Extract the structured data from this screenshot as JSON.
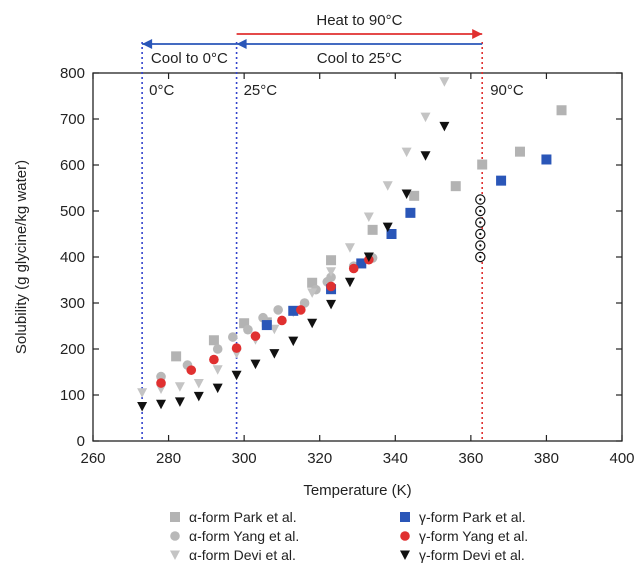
{
  "chart_data": {
    "type": "scatter",
    "xlabel": "Temperature (K)",
    "ylabel": "Solubility (g glycine/kg water)",
    "xlim": [
      260,
      400
    ],
    "ylim": [
      0,
      800
    ],
    "xticks": [
      260,
      280,
      300,
      320,
      340,
      360,
      380,
      400
    ],
    "yticks": [
      0,
      100,
      200,
      300,
      400,
      500,
      600,
      700,
      800
    ],
    "grid": false,
    "legend_position": "bottom",
    "series": [
      {
        "name": "α-form Park et al.",
        "marker": "square",
        "color": "#b3b3b3",
        "points": [
          [
            282,
            184
          ],
          [
            292,
            219
          ],
          [
            300,
            256
          ],
          [
            306,
            258
          ],
          [
            318,
            344
          ],
          [
            323,
            393
          ],
          [
            334,
            459
          ],
          [
            345,
            533
          ],
          [
            356,
            554
          ],
          [
            363,
            601
          ],
          [
            373,
            629
          ],
          [
            384,
            719
          ]
        ]
      },
      {
        "name": "α-form Yang et al.",
        "marker": "circle",
        "color": "#b8b8b8",
        "points": [
          [
            278,
            140
          ],
          [
            285,
            165
          ],
          [
            293,
            200
          ],
          [
            297,
            226
          ],
          [
            301,
            242
          ],
          [
            305,
            268
          ],
          [
            309,
            285
          ],
          [
            313,
            283
          ],
          [
            316,
            300
          ],
          [
            319,
            329
          ],
          [
            322,
            346
          ],
          [
            323,
            356
          ],
          [
            329,
            380
          ],
          [
            334,
            398
          ]
        ]
      },
      {
        "name": "α-form Devi et al.",
        "marker": "triangle-down",
        "color": "#c4c4c4",
        "points": [
          [
            273,
            105
          ],
          [
            278,
            113
          ],
          [
            283,
            118
          ],
          [
            288,
            125
          ],
          [
            293,
            155
          ],
          [
            298,
            190
          ],
          [
            303,
            220
          ],
          [
            308,
            243
          ],
          [
            313,
            280
          ],
          [
            318,
            322
          ],
          [
            323,
            368
          ],
          [
            328,
            420
          ],
          [
            333,
            487
          ],
          [
            338,
            555
          ],
          [
            343,
            628
          ],
          [
            348,
            704
          ],
          [
            353,
            781
          ]
        ]
      },
      {
        "name": "γ-form Park et al.",
        "marker": "square",
        "color": "#2a56b8",
        "points": [
          [
            306,
            252
          ],
          [
            313,
            283
          ],
          [
            323,
            330
          ],
          [
            331,
            386
          ],
          [
            339,
            450
          ],
          [
            344,
            496
          ],
          [
            368,
            566
          ],
          [
            380,
            612
          ]
        ]
      },
      {
        "name": "γ-form Yang et al.",
        "marker": "circle",
        "color": "#e03030",
        "points": [
          [
            278,
            126
          ],
          [
            286,
            154
          ],
          [
            292,
            177
          ],
          [
            298,
            202
          ],
          [
            303,
            228
          ],
          [
            310,
            262
          ],
          [
            315,
            285
          ],
          [
            323,
            336
          ],
          [
            329,
            375
          ],
          [
            333,
            394
          ]
        ]
      },
      {
        "name": "γ-form Devi et al.",
        "marker": "triangle-down",
        "color": "#111111",
        "points": [
          [
            273,
            75
          ],
          [
            278,
            80
          ],
          [
            283,
            85
          ],
          [
            288,
            97
          ],
          [
            293,
            115
          ],
          [
            298,
            143
          ],
          [
            303,
            167
          ],
          [
            308,
            190
          ],
          [
            313,
            217
          ],
          [
            318,
            256
          ],
          [
            323,
            297
          ],
          [
            328,
            345
          ],
          [
            333,
            400
          ],
          [
            338,
            465
          ],
          [
            343,
            537
          ],
          [
            348,
            620
          ],
          [
            353,
            684
          ]
        ]
      },
      {
        "name": "",
        "marker": "open-dot-circle",
        "color": "#111111",
        "points": [
          [
            362.5,
            525
          ],
          [
            362.5,
            500
          ],
          [
            362.5,
            475
          ],
          [
            362.5,
            450
          ],
          [
            362.5,
            425
          ],
          [
            362.5,
            400
          ]
        ]
      }
    ],
    "vertical_lines": [
      {
        "x": 273,
        "color": "#3344cc",
        "label": "0°C"
      },
      {
        "x": 298,
        "color": "#3344cc",
        "label": "25°C"
      },
      {
        "x": 363,
        "color": "#e03030",
        "label": "90°C"
      }
    ],
    "arrows": [
      {
        "from": 298,
        "to": 363,
        "color": "#e03030",
        "label": "Heat to 90°C",
        "row": "top"
      },
      {
        "from": 298,
        "to": 273,
        "color": "#2a56b8",
        "label": "Cool to 0°C",
        "row": "bottom"
      },
      {
        "from": 363,
        "to": 298,
        "color": "#2a56b8",
        "label": "Cool to 25°C",
        "row": "bottom"
      }
    ]
  }
}
